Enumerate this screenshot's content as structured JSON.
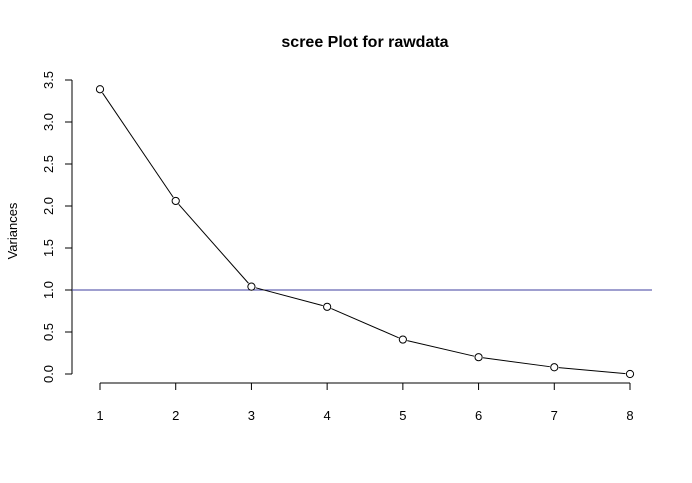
{
  "chart_data": {
    "type": "line",
    "title": "scree Plot for rawdata",
    "xlabel": "",
    "ylabel": "Variances",
    "x": [
      1,
      2,
      3,
      4,
      5,
      6,
      7,
      8
    ],
    "values": [
      3.39,
      2.06,
      1.04,
      0.8,
      0.41,
      0.2,
      0.08,
      0.0
    ],
    "xlim": [
      1,
      8
    ],
    "ylim": [
      0,
      3.5
    ],
    "x_ticks": [
      "1",
      "2",
      "3",
      "4",
      "5",
      "6",
      "7",
      "8"
    ],
    "y_ticks": [
      "0.0",
      "0.5",
      "1.0",
      "1.5",
      "2.0",
      "2.5",
      "3.0",
      "3.5"
    ],
    "reference_line": {
      "y": 1.0,
      "color": "#3f3f9f"
    },
    "grid": false,
    "line_color": "#000000",
    "marker": "open-circle"
  }
}
